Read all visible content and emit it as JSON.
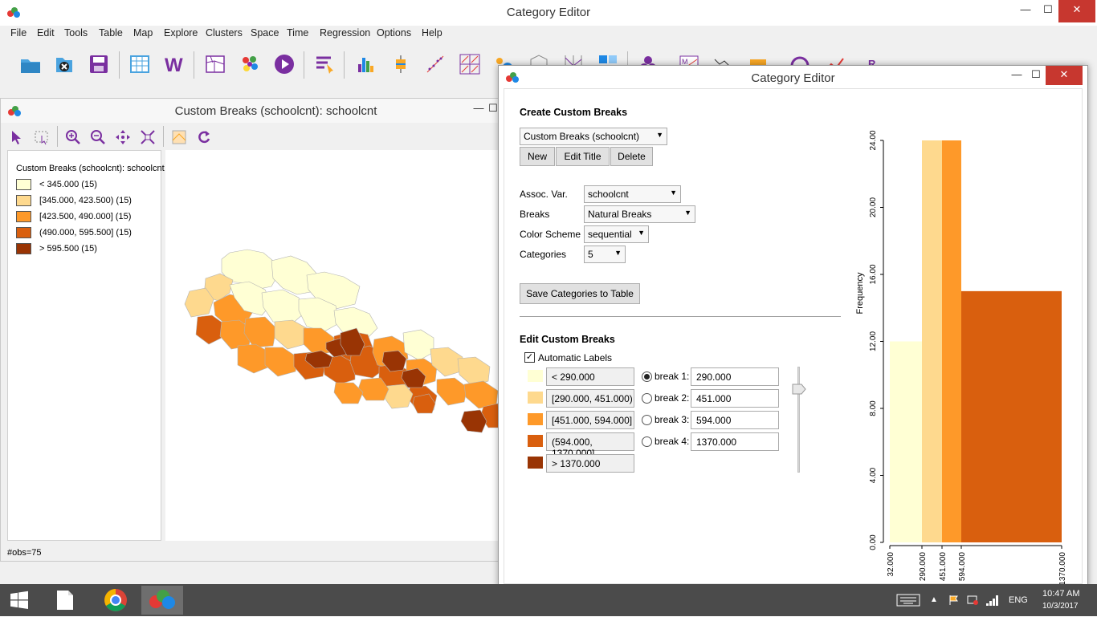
{
  "main_window": {
    "title": "Category Editor",
    "controls": {
      "minimize": "—",
      "maximize": "☐",
      "close": "✕"
    },
    "menu": [
      "File",
      "Edit",
      "Tools",
      "Table",
      "Map",
      "Explore",
      "Clusters",
      "Space",
      "Time",
      "Regression",
      "Options",
      "Help"
    ],
    "toolbar_icons": [
      "open-folder-icon",
      "close-project-icon",
      "save-icon",
      "table-icon",
      "weights-icon",
      "map-shape-icon",
      "cluster-dots-icon",
      "play-icon",
      "category-editor-icon",
      "histogram-icon",
      "boxplot-icon",
      "scatterplot-icon",
      "scatter-matrix-icon",
      "bubble-chart-icon",
      "3d-plot-icon",
      "parallel-coordinates-icon",
      "conditional-plot-icon",
      "cluster-icon",
      "moran-icon",
      "lisa-icon",
      "averages-chart-icon",
      "time-icon",
      "line-chart-icon",
      "regression-icon"
    ]
  },
  "map_window": {
    "title": "Custom Breaks (schoolcnt): schoolcnt",
    "controls": {
      "minimize": "—",
      "maximize": "☐"
    },
    "legend": {
      "title": "Custom Breaks (schoolcnt): schoolcnt",
      "items": [
        {
          "label": "< 345.000 (15)",
          "color": "#ffffd4"
        },
        {
          "label": "[345.000, 423.500) (15)",
          "color": "#fed98e"
        },
        {
          "label": "[423.500, 490.000] (15)",
          "color": "#fe9929"
        },
        {
          "label": "(490.000, 595.500] (15)",
          "color": "#d95f0e"
        },
        {
          "label": "> 595.500 (15)",
          "color": "#993404"
        }
      ]
    },
    "status": "#obs=75"
  },
  "category_editor": {
    "title": "Category Editor",
    "controls": {
      "minimize": "—",
      "maximize": "☐",
      "close": "✕"
    },
    "create_section": {
      "header": "Create Custom Breaks",
      "selected_breaks": "Custom Breaks (schoolcnt)",
      "new_label": "New",
      "edit_title_label": "Edit Title",
      "delete_label": "Delete"
    },
    "assoc_var": {
      "label": "Assoc. Var.",
      "value": "schoolcnt"
    },
    "breaks": {
      "label": "Breaks",
      "value": "Natural Breaks"
    },
    "color_scheme": {
      "label": "Color Scheme",
      "value": "sequential"
    },
    "categories": {
      "label": "Categories",
      "value": "5"
    },
    "save_label": "Save Categories to Table",
    "edit_section": {
      "header": "Edit Custom Breaks",
      "automatic_labels": "Automatic Labels",
      "automatic_labels_checked": true,
      "categories": [
        {
          "label": "< 290.000",
          "color": "#ffffd4"
        },
        {
          "label": "[290.000, 451.000)",
          "color": "#fed98e"
        },
        {
          "label": "[451.000, 594.000]",
          "color": "#fe9929"
        },
        {
          "label": "(594.000, 1370.000]",
          "color": "#d95f0e"
        },
        {
          "label": "> 1370.000",
          "color": "#993404"
        }
      ],
      "breaks": [
        {
          "radio_label": "break 1:",
          "value": "290.000",
          "selected": true
        },
        {
          "radio_label": "break 2:",
          "value": "451.000",
          "selected": false
        },
        {
          "radio_label": "break 3:",
          "value": "594.000",
          "selected": false
        },
        {
          "radio_label": "break 4:",
          "value": "1370.000",
          "selected": false
        }
      ]
    }
  },
  "chart_data": {
    "type": "bar",
    "ylabel": "Frequency",
    "xlabel": "",
    "ylim": [
      0,
      24
    ],
    "y_ticks": [
      "0.00",
      "4.00",
      "8.00",
      "12.00",
      "16.00",
      "20.00",
      "24.00"
    ],
    "x_ticks": [
      "32.000",
      "290.000",
      "451.000",
      "594.000",
      "1370.000"
    ],
    "bins": [
      {
        "from": 32,
        "to": 290,
        "value": 12,
        "color": "#ffffd4"
      },
      {
        "from": 290,
        "to": 451,
        "value": 24,
        "color": "#fed98e"
      },
      {
        "from": 451,
        "to": 594,
        "value": 24,
        "color": "#fe9929"
      },
      {
        "from": 594,
        "to": 1370,
        "value": 15,
        "color": "#d95f0e"
      }
    ],
    "grid": false
  },
  "taskbar": {
    "apps": [
      "windows-start-icon",
      "file-explorer-icon",
      "chrome-icon",
      "geoda-icon"
    ],
    "language": "ENG",
    "time": "10:47 AM",
    "date": "10/3/2017"
  }
}
